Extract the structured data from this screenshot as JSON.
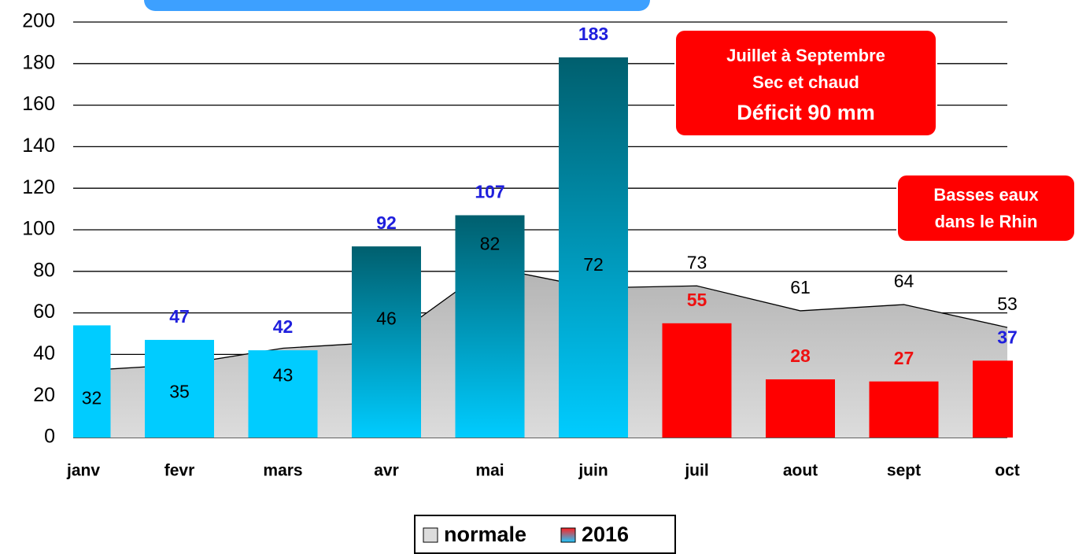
{
  "chart_data": {
    "type": "combo",
    "categories": [
      "janv",
      "fevr",
      "mars",
      "avr",
      "mai",
      "juin",
      "juil",
      "aout",
      "sept",
      "oct"
    ],
    "series": [
      {
        "name": "normale",
        "type": "area",
        "gradient": [
          "#7a7a7a",
          "#dcdcdc"
        ],
        "line_color": "#000000",
        "values": [
          32,
          35,
          43,
          46,
          82,
          72,
          73,
          61,
          64,
          53
        ]
      },
      {
        "name": "2016",
        "type": "bar",
        "colors": [
          "#00ccff",
          "#00ccff",
          "#00ccff",
          "#00ccff",
          "#00ccff",
          "#00ccff",
          "#ff0000",
          "#ff0000",
          "#ff0000",
          "#ff0000"
        ],
        "gradient_tops": [
          null,
          null,
          null,
          "#005f6e",
          "#005f6e",
          "#005f6e",
          null,
          null,
          null,
          null
        ],
        "values": [
          54,
          47,
          42,
          92,
          107,
          183,
          55,
          28,
          27,
          37
        ],
        "value_labels": [
          null,
          "47",
          "42",
          "92",
          "107",
          "183",
          "55",
          "28",
          "27",
          "37"
        ],
        "label_colors": [
          "#1f1fdd",
          "#1f1fdd",
          "#1f1fdd",
          "#1f1fdd",
          "#1f1fdd",
          "#1f1fdd",
          "#ee1111",
          "#ee1111",
          "#ee1111",
          "#1f1fdd"
        ]
      }
    ],
    "ylim": [
      0,
      200
    ],
    "yticks": [
      0,
      20,
      40,
      60,
      80,
      100,
      120,
      140,
      160,
      180,
      200
    ],
    "grid": true,
    "annotations": [
      {
        "lines": [
          "Juillet à Septembre",
          "Sec et chaud",
          "Déficit 90 mm"
        ],
        "color": "#ff0000"
      },
      {
        "lines": [
          "Basses eaux",
          "dans le Rhin"
        ],
        "color": "#ff0000"
      }
    ],
    "legend": "bottom"
  }
}
